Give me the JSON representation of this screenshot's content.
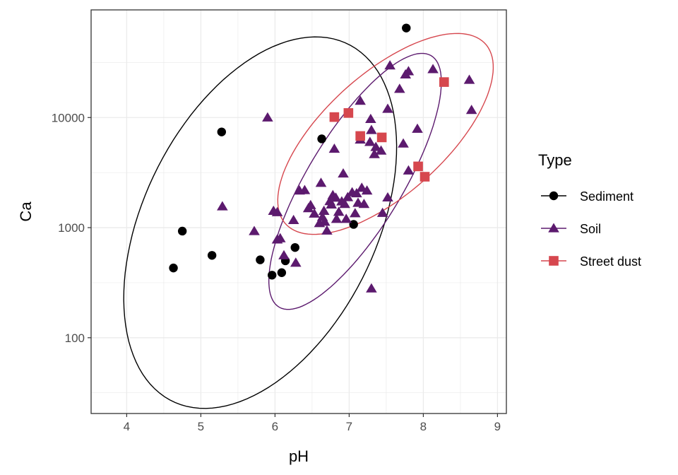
{
  "chart_data": {
    "type": "scatter",
    "xlabel": "pH",
    "ylabel": "Ca",
    "y_scale": "log10",
    "xlim": [
      3.52,
      9.12
    ],
    "ylim": [
      20.5,
      95000
    ],
    "x_ticks": [
      4,
      5,
      6,
      7,
      8,
      9
    ],
    "x_tick_labels": [
      "4",
      "5",
      "6",
      "7",
      "8",
      "9"
    ],
    "y_ticks": [
      100,
      1000,
      10000
    ],
    "y_tick_labels": [
      "100",
      "1000",
      "10000"
    ],
    "grid": true,
    "legend": {
      "title": "Type",
      "position": "right"
    },
    "series": [
      {
        "name": "Sediment",
        "marker": "circle",
        "color": "#000000",
        "points": [
          [
            4.63,
            430
          ],
          [
            4.75,
            930
          ],
          [
            5.15,
            560
          ],
          [
            5.28,
            7400
          ],
          [
            5.8,
            510
          ],
          [
            5.96,
            370
          ],
          [
            6.09,
            390
          ],
          [
            6.14,
            500
          ],
          [
            6.27,
            660
          ],
          [
            6.63,
            6400
          ],
          [
            7.06,
            1070
          ],
          [
            7.77,
            65000
          ]
        ],
        "ellipse": {
          "center": [
            5.8,
            1110
          ],
          "rx": 2.1,
          "ry": 1.35,
          "angle_deg": 39
        }
      },
      {
        "name": "Soil",
        "marker": "triangle",
        "color": "#5c1a6e",
        "points": [
          [
            5.29,
            1560
          ],
          [
            5.72,
            930
          ],
          [
            5.9,
            10000
          ],
          [
            5.98,
            1420
          ],
          [
            6.03,
            1380
          ],
          [
            6.03,
            780
          ],
          [
            6.07,
            800
          ],
          [
            6.12,
            560
          ],
          [
            6.25,
            1170
          ],
          [
            6.28,
            480
          ],
          [
            6.33,
            2170
          ],
          [
            6.4,
            2190
          ],
          [
            6.45,
            1500
          ],
          [
            6.48,
            1600
          ],
          [
            6.53,
            1340
          ],
          [
            6.6,
            1100
          ],
          [
            6.62,
            2550
          ],
          [
            6.64,
            1250
          ],
          [
            6.66,
            1420
          ],
          [
            6.67,
            1130
          ],
          [
            6.7,
            940
          ],
          [
            6.74,
            1740
          ],
          [
            6.76,
            1620
          ],
          [
            6.78,
            1970
          ],
          [
            6.8,
            5200
          ],
          [
            6.82,
            1870
          ],
          [
            6.83,
            1200
          ],
          [
            6.86,
            1390
          ],
          [
            6.9,
            1730
          ],
          [
            6.92,
            3100
          ],
          [
            6.94,
            1640
          ],
          [
            6.96,
            1200
          ],
          [
            6.98,
            1890
          ],
          [
            7.04,
            2090
          ],
          [
            7.08,
            1350
          ],
          [
            7.1,
            2050
          ],
          [
            7.12,
            1680
          ],
          [
            7.15,
            6300
          ],
          [
            7.15,
            14200
          ],
          [
            7.17,
            2300
          ],
          [
            7.2,
            1640
          ],
          [
            7.24,
            2170
          ],
          [
            7.28,
            6000
          ],
          [
            7.29,
            9700
          ],
          [
            7.3,
            7700
          ],
          [
            7.3,
            280
          ],
          [
            7.34,
            4650
          ],
          [
            7.36,
            5400
          ],
          [
            7.43,
            5000
          ],
          [
            7.45,
            1360
          ],
          [
            7.52,
            12000
          ],
          [
            7.52,
            1880
          ],
          [
            7.55,
            29700
          ],
          [
            7.68,
            18200
          ],
          [
            7.73,
            5800
          ],
          [
            7.76,
            24600
          ],
          [
            7.8,
            26300
          ],
          [
            7.8,
            3300
          ],
          [
            7.92,
            7900
          ],
          [
            8.13,
            27500
          ],
          [
            8.62,
            22000
          ],
          [
            8.65,
            11700
          ]
        ],
        "ellipse": {
          "center": [
            7.08,
            2630
          ],
          "rx": 1.55,
          "ry": 0.55,
          "angle_deg": 45
        }
      },
      {
        "name": "Street dust",
        "marker": "square",
        "color": "#d6474e",
        "points": [
          [
            6.8,
            10100
          ],
          [
            6.99,
            11000
          ],
          [
            7.15,
            6800
          ],
          [
            7.44,
            6600
          ],
          [
            7.93,
            3600
          ],
          [
            8.02,
            2900
          ],
          [
            8.28,
            21000
          ]
        ],
        "ellipse": {
          "center": [
            7.49,
            7100
          ],
          "rx": 1.6,
          "ry": 0.62,
          "angle_deg": 27
        }
      }
    ]
  }
}
